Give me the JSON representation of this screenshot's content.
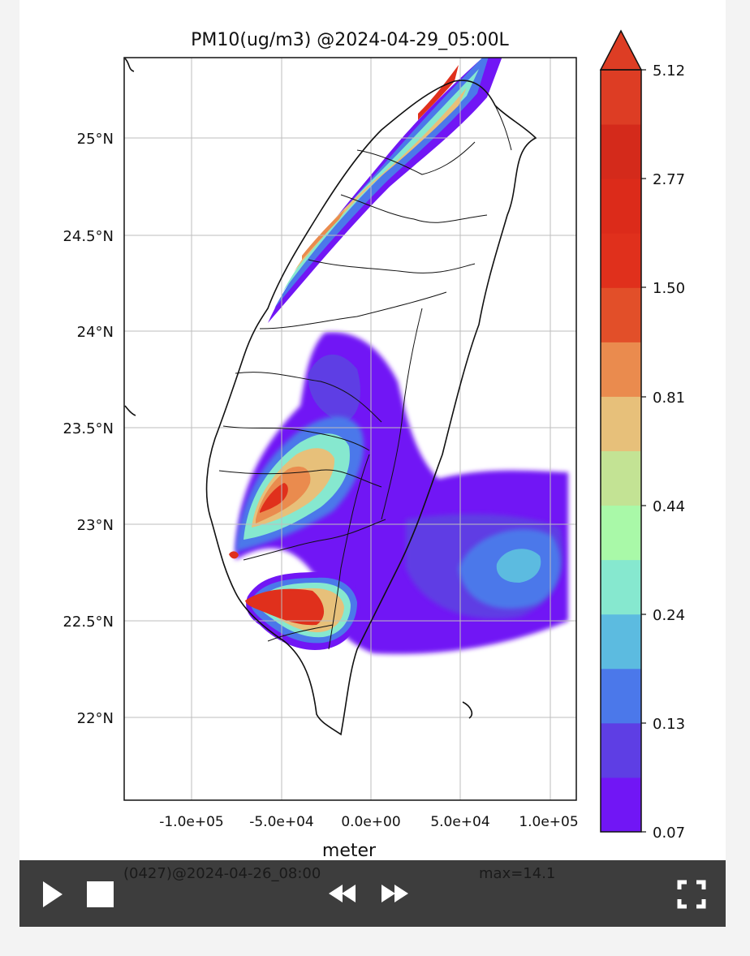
{
  "chart_data": {
    "type": "heatmap",
    "title": "PM10(ug/m3) @2024-04-29_05:00L",
    "xlabel": "meter",
    "ylabel": "",
    "x_ticks": [
      "-1.0e+05",
      "-5.0e+04",
      "0.0e+00",
      "5.0e+04",
      "1.0e+05"
    ],
    "x_tick_values": [
      -100000,
      -50000,
      0,
      50000,
      100000
    ],
    "y_ticks": [
      "22°N",
      "22.5°N",
      "23°N",
      "23.5°N",
      "24°N",
      "24.5°N",
      "25°N"
    ],
    "y_tick_values": [
      22,
      22.5,
      23,
      23.5,
      24,
      24.5,
      25
    ],
    "xlim": [
      -137000,
      114000
    ],
    "ylim": [
      21.58,
      25.42
    ],
    "grid": true,
    "colorbar": {
      "labels": [
        "5.12",
        "2.77",
        "1.50",
        "0.81",
        "0.44",
        "0.24",
        "0.13",
        "0.07"
      ],
      "levels": [
        0.07,
        0.09,
        0.13,
        0.17,
        0.24,
        0.32,
        0.44,
        0.6,
        0.81,
        1.1,
        1.5,
        2.0,
        2.77,
        3.76,
        5.12
      ],
      "colors": [
        "#7116f5",
        "#5e3ee4",
        "#4b78ea",
        "#5cbbe0",
        "#86e8cf",
        "#a9f9a8",
        "#c3e394",
        "#e7c07a",
        "#ea8b4e",
        "#e24f29",
        "#e0301c",
        "#dc2b1a",
        "#d42a1b",
        "#dd3d24"
      ],
      "extend": "max",
      "extend_color": "#dd3d24"
    }
  },
  "footer": {
    "run_label": "(0427)@2024-04-26_08:00",
    "max_label": "max=14.1"
  },
  "player": {
    "play_icon": "play-icon",
    "stop_icon": "stop-icon",
    "rewind_icon": "rewind-icon",
    "forward_icon": "fast-forward-icon",
    "fullscreen_icon": "fullscreen-icon"
  }
}
